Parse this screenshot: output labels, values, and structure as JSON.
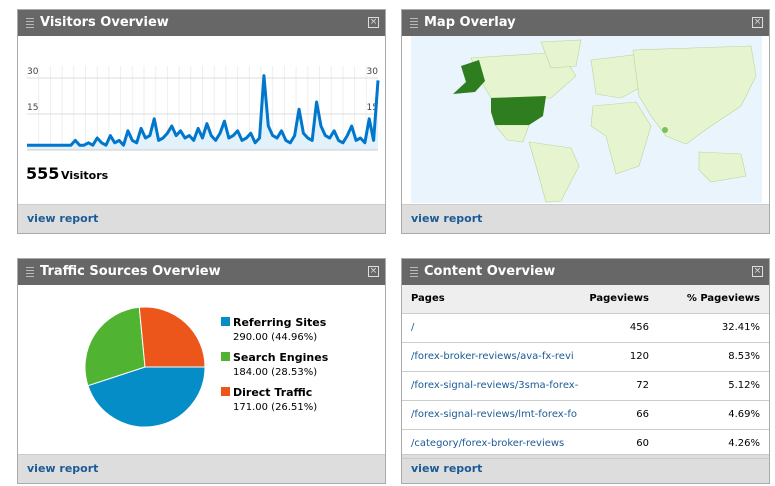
{
  "panels": [
    {
      "title": "Visitors Overview",
      "link": "view report"
    },
    {
      "title": "Map Overlay",
      "link": "view report"
    },
    {
      "title": "Traffic Sources Overview",
      "link": "view report"
    },
    {
      "title": "Content Overview",
      "link": "view report"
    }
  ],
  "chart_data": [
    {
      "type": "line",
      "color": "#0077cc",
      "ylim": [
        0,
        35
      ],
      "yticks": [
        15,
        30
      ],
      "grid": true,
      "values": [
        2,
        2,
        2,
        2,
        2,
        2,
        2,
        2,
        2,
        2,
        2,
        4,
        2,
        2,
        3,
        2,
        5,
        3,
        2,
        6,
        3,
        4,
        2,
        8,
        4,
        3,
        9,
        5,
        6,
        13,
        4,
        5,
        7,
        10,
        6,
        8,
        5,
        6,
        4,
        9,
        5,
        11,
        6,
        4,
        7,
        12,
        5,
        6,
        8,
        4,
        5,
        7,
        3,
        5,
        31,
        10,
        6,
        5,
        8,
        4,
        3,
        6,
        17,
        7,
        5,
        4,
        20,
        10,
        6,
        5,
        8,
        4,
        3,
        6,
        10,
        4,
        5,
        3,
        13,
        4,
        29
      ],
      "total": 555,
      "total_label": "Visitors"
    },
    {
      "type": "pie",
      "categories": [
        "Referring Sites",
        "Search Engines",
        "Direct Traffic"
      ],
      "values": [
        290,
        184,
        171
      ],
      "value_labels": [
        "290.00 (44.96%)",
        "184.00 (28.53%)",
        "171.00 (26.51%)"
      ],
      "colors": [
        "#058dc7",
        "#50b432",
        "#ed561b"
      ]
    }
  ],
  "table": {
    "header": [
      "Pages",
      "Pageviews",
      "% Pageviews"
    ],
    "rows": [
      [
        "/",
        "456",
        "32.41%"
      ],
      [
        "/forex-broker-reviews/ava-fx-revi",
        "120",
        "8.53%"
      ],
      [
        "/forex-signal-reviews/3sma-forex-",
        "72",
        "5.12%"
      ],
      [
        "/forex-signal-reviews/lmt-forex-fo",
        "66",
        "4.69%"
      ],
      [
        "/category/forex-broker-reviews",
        "60",
        "4.26%"
      ]
    ]
  }
}
